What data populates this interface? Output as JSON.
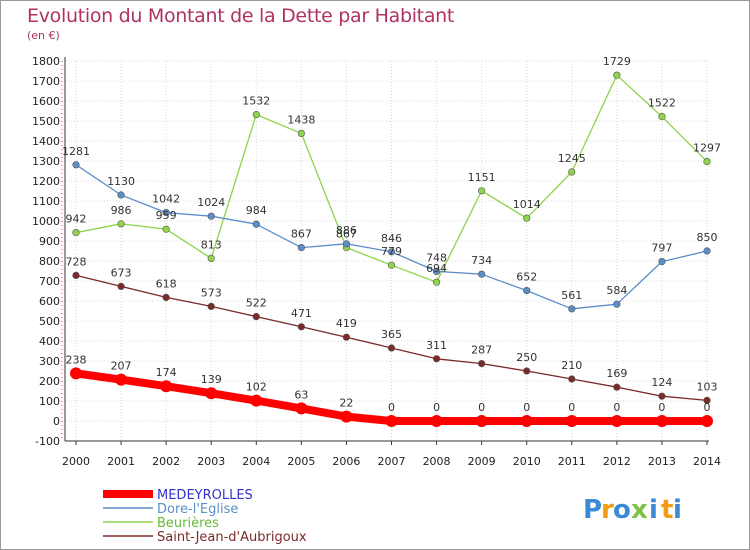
{
  "chart_data": {
    "type": "line",
    "title": "Evolution du Montant de la Dette par Habitant",
    "subtitle": "(en €)",
    "x": [
      "2000",
      "2001",
      "2002",
      "2003",
      "2004",
      "2005",
      "2006",
      "2007",
      "2008",
      "2009",
      "2010",
      "2011",
      "2012",
      "2013",
      "2014"
    ],
    "yticks": [
      "-100",
      "0",
      "100",
      "200",
      "300",
      "400",
      "500",
      "600",
      "700",
      "800",
      "900",
      "1000",
      "1100",
      "1200",
      "1300",
      "1400",
      "1500",
      "1600",
      "1700",
      "1800"
    ],
    "ylim": [
      -100,
      1800
    ],
    "grid": true,
    "legend_position": "bottom-left",
    "series": [
      {
        "name": "MEDEYROLLES",
        "color": "#ff0000",
        "legend_color": "#3333cc",
        "values": [
          238,
          207,
          174,
          139,
          102,
          63,
          22,
          0,
          0,
          0,
          0,
          0,
          0,
          0,
          0
        ],
        "labels": [
          "238",
          "207",
          "174",
          "139",
          "102",
          "63",
          "22",
          "0",
          "0",
          "0",
          "0",
          "0",
          "0",
          "0",
          "0"
        ]
      },
      {
        "name": "Dore-l'Eglise",
        "color": "#5b8ec8",
        "legend_color": "#5b8ec8",
        "values": [
          1281,
          1130,
          1042,
          1024,
          984,
          867,
          886,
          846,
          748,
          734,
          652,
          561,
          584,
          797,
          850
        ],
        "labels": [
          "1281",
          "1130",
          "1042",
          "1024",
          "984",
          "867",
          "886",
          "846",
          "748",
          "734",
          "652",
          "561",
          "584",
          "797",
          "850"
        ]
      },
      {
        "name": "Beurières",
        "color": "#8fd44a",
        "legend_color": "#66bb33",
        "values": [
          942,
          986,
          959,
          813,
          1532,
          1438,
          867,
          779,
          694,
          1151,
          1014,
          1245,
          1729,
          1522,
          1297
        ],
        "labels": [
          "942",
          "986",
          "959",
          "813",
          "1532",
          "1438",
          "867",
          "779",
          "694",
          "1151",
          "1014",
          "1245",
          "1729",
          "1522",
          "1297"
        ]
      },
      {
        "name": "Saint-Jean-d'Aubrigoux",
        "color": "#7a2a2a",
        "legend_color": "#7a2a2a",
        "values": [
          728,
          673,
          618,
          573,
          522,
          471,
          419,
          365,
          311,
          287,
          250,
          210,
          169,
          124,
          103
        ],
        "labels": [
          "728",
          "673",
          "618",
          "573",
          "522",
          "471",
          "419",
          "365",
          "311",
          "287",
          "250",
          "210",
          "169",
          "124",
          "103"
        ]
      }
    ]
  },
  "brand": {
    "letters": [
      "P",
      "r",
      "o",
      "x",
      "i",
      "t",
      "i"
    ],
    "colors": [
      "#3a8ad6",
      "#f39c12",
      "#3a8ad6",
      "#7cc243",
      "#3a8ad6",
      "#f39c12",
      "#3a8ad6"
    ]
  }
}
